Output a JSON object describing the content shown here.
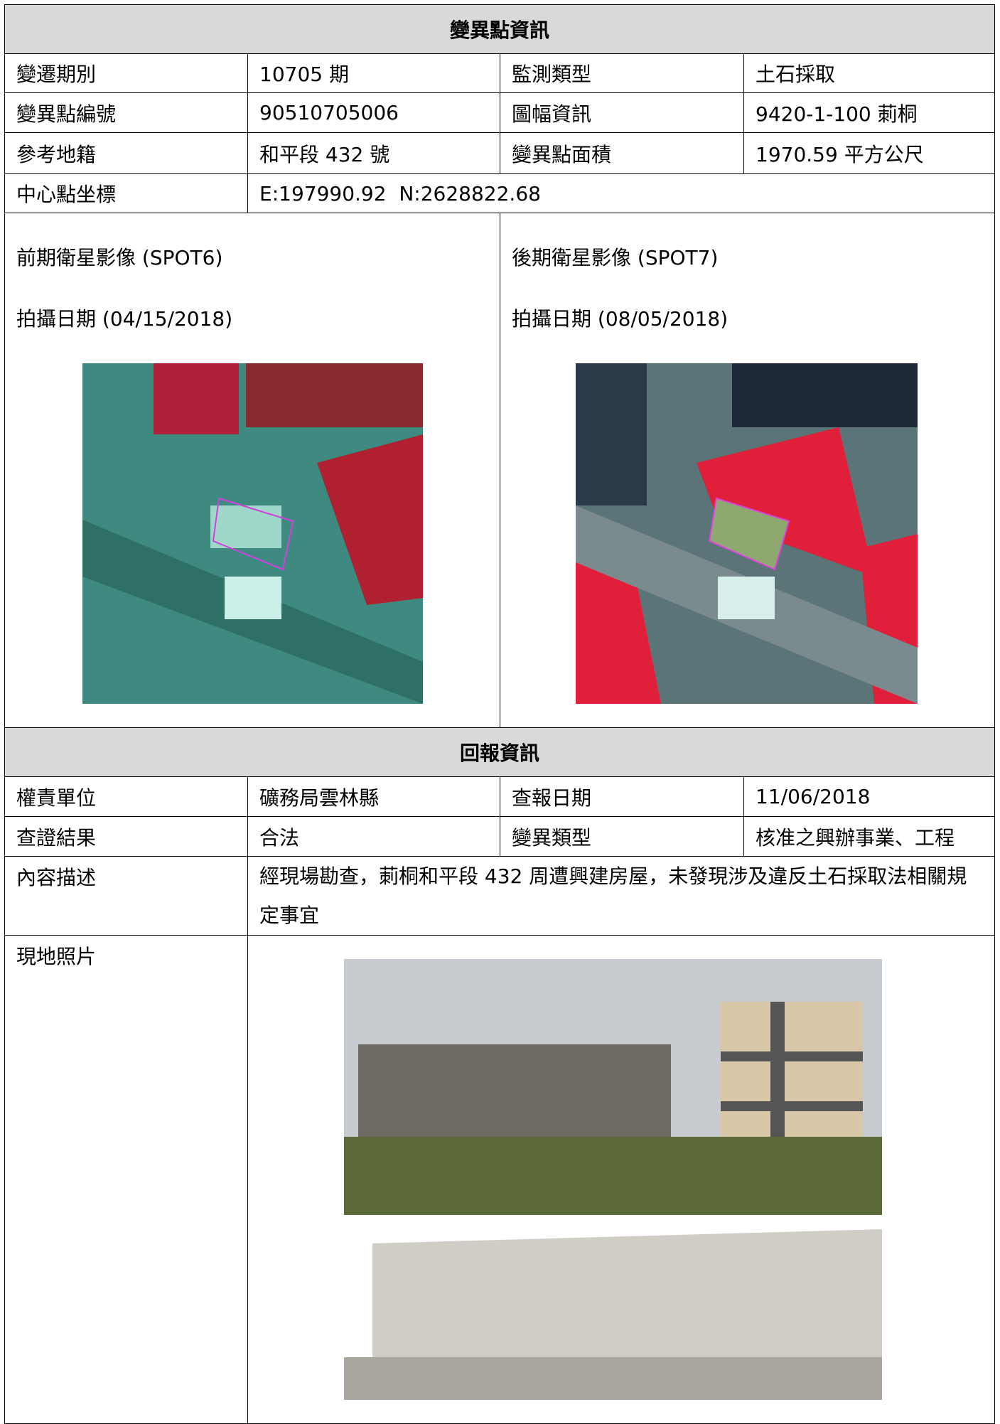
{
  "change_info": {
    "title": "變異點資訊",
    "rows": [
      [
        "變遷期別",
        "10705 期",
        "監測類型",
        "土石採取"
      ],
      [
        "變異點編號",
        "90510705006",
        "圖幅資訊",
        "9420-1-100 莿桐"
      ],
      [
        "參考地籍",
        "和平段 432 號",
        "變異點面積",
        "1970.59 平方公尺"
      ]
    ],
    "center": {
      "label": "中心點坐標",
      "value": "E:197990.92  N:2628822.68"
    },
    "images": [
      {
        "caption": "前期衛星影像 (SPOT6)",
        "date": "拍攝日期 (04/15/2018)"
      },
      {
        "caption": "後期衛星影像 (SPOT7)",
        "date": "拍攝日期 (08/05/2018)"
      }
    ]
  },
  "report_info": {
    "title": "回報資訊",
    "rows": [
      [
        "權責單位",
        "礦務局雲林縣",
        "查報日期",
        "11/06/2018"
      ],
      [
        "查證結果",
        "合法",
        "變異類型",
        "核准之興辦事業、工程"
      ]
    ],
    "description": {
      "label": "內容描述",
      "text": "經現場勘查，莿桐和平段 432 周遭興建房屋，未發現涉及違反土石採取法相關規定事宜"
    },
    "photo": {
      "label": "現地照片"
    }
  }
}
